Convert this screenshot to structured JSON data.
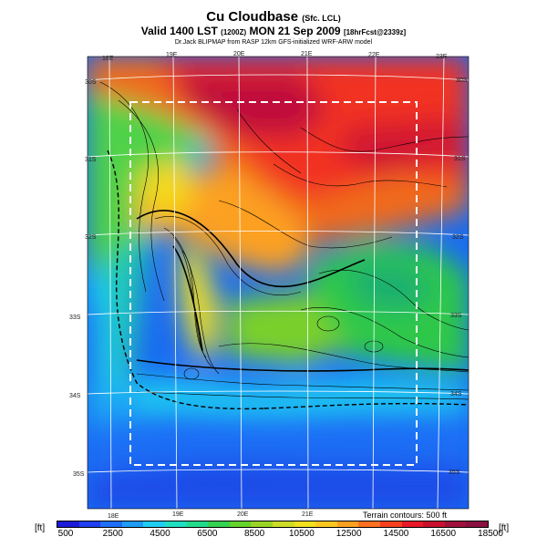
{
  "header": {
    "title": "Cu Cloudbase",
    "title_suffix": "(Sfc. LCL)",
    "valid_line": "Valid 1400 LST",
    "valid_code": "(1200Z)",
    "valid_date": "MON 21 Sep 2009",
    "forecast_code": "[18hrFcst@2339z]",
    "credit": "Dr.Jack BLIPMAP from RASP 12km GFS-initialized WRF-ARW model"
  },
  "map": {
    "lon_labels_top": [
      "18E",
      "19E",
      "20E",
      "21E",
      "22E",
      "23E"
    ],
    "lon_labels_bottom": [
      "18E",
      "19E",
      "20E",
      "21E"
    ],
    "lat_labels_left": [
      "30S",
      "31S",
      "32S",
      "33S",
      "34S",
      "35S"
    ],
    "lat_labels_right": [
      "30S",
      "31S",
      "32S",
      "33S",
      "34S",
      "35S"
    ],
    "terrain_note": "Terrain contours: 500 ft"
  },
  "legend": {
    "unit_left": "[ft]",
    "unit_right": "[ft]",
    "ticks": [
      "500",
      "2500",
      "4500",
      "6500",
      "8500",
      "10500",
      "12500",
      "14500",
      "16500",
      "18500"
    ],
    "colors": [
      "#1a1ad8",
      "#1f3ff0",
      "#1f6ef5",
      "#1f9cf5",
      "#1fcdf0",
      "#1fe0c0",
      "#22dc8c",
      "#34d250",
      "#66d22c",
      "#9ad424",
      "#ccdc28",
      "#f0e020",
      "#fcc820",
      "#fca020",
      "#fc7020",
      "#f84020",
      "#e81828",
      "#c8102e",
      "#a0103c",
      "#8a1040"
    ]
  }
}
